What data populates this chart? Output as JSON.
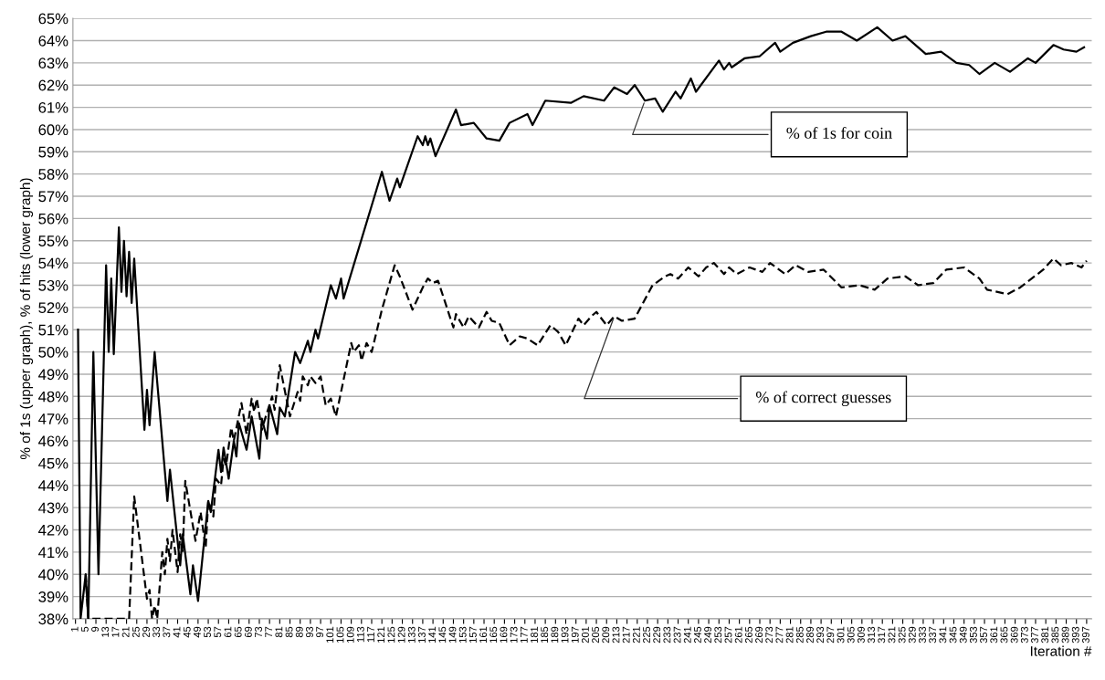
{
  "chart_data": {
    "type": "line",
    "ylabel": "% of 1s (upper graph), % of hits (lower graph)",
    "xlabel": "Iteration #",
    "xlim": [
      0,
      399
    ],
    "xticks": [
      1,
      5,
      9,
      13,
      17,
      21,
      25,
      29,
      33,
      37,
      41,
      45,
      49,
      53,
      57,
      61,
      65,
      69,
      73,
      77,
      81,
      85,
      89,
      93,
      97,
      101,
      105,
      109,
      113,
      117,
      121,
      125,
      129,
      133,
      137,
      141,
      145,
      149,
      153,
      157,
      161,
      165,
      169,
      173,
      177,
      181,
      185,
      189,
      193,
      197,
      201,
      205,
      209,
      213,
      217,
      221,
      225,
      229,
      233,
      237,
      241,
      245,
      249,
      253,
      257,
      261,
      265,
      269,
      273,
      277,
      281,
      285,
      289,
      293,
      297,
      301,
      305,
      309,
      313,
      317,
      321,
      325,
      329,
      333,
      337,
      341,
      345,
      349,
      353,
      357,
      361,
      365,
      369,
      373,
      377,
      381,
      385,
      389,
      393,
      397
    ],
    "ylim": [
      38,
      65
    ],
    "yticks": [
      {
        "value": 38,
        "label": "38%"
      },
      {
        "value": 39,
        "label": "39%"
      },
      {
        "value": 40,
        "label": "40%"
      },
      {
        "value": 41,
        "label": "41%"
      },
      {
        "value": 42,
        "label": "42%"
      },
      {
        "value": 43,
        "label": "43%"
      },
      {
        "value": 44,
        "label": "44%"
      },
      {
        "value": 45,
        "label": "45%"
      },
      {
        "value": 46,
        "label": "46%"
      },
      {
        "value": 47,
        "label": "47%"
      },
      {
        "value": 48,
        "label": "48%"
      },
      {
        "value": 49,
        "label": "49%"
      },
      {
        "value": 50,
        "label": "50%"
      },
      {
        "value": 51,
        "label": "51%"
      },
      {
        "value": 52,
        "label": "52%"
      },
      {
        "value": 53,
        "label": "53%"
      },
      {
        "value": 54,
        "label": "54%"
      },
      {
        "value": 55,
        "label": "55%"
      },
      {
        "value": 56,
        "label": "56%"
      },
      {
        "value": 57,
        "label": "57%"
      },
      {
        "value": 58,
        "label": "58%"
      },
      {
        "value": 59,
        "label": "59%"
      },
      {
        "value": 60,
        "label": "60%"
      },
      {
        "value": 61,
        "label": "61%"
      },
      {
        "value": 62,
        "label": "62%"
      },
      {
        "value": 63,
        "label": "63%"
      },
      {
        "value": 64,
        "label": "64%"
      },
      {
        "value": 65,
        "label": "65%"
      }
    ],
    "grid": "y",
    "legend": false,
    "marker": "none",
    "series": [
      {
        "name": "% of 1s for coin",
        "color": "#000000",
        "line_style": "solid",
        "x": [
          2,
          3,
          5,
          6,
          8,
          10,
          13,
          14,
          15,
          16,
          18,
          19,
          20,
          21,
          22,
          23,
          24,
          28,
          29,
          30,
          32,
          37,
          38,
          42,
          43,
          46,
          47,
          49,
          53,
          54,
          57,
          58,
          59,
          61,
          63,
          64,
          65,
          68,
          70,
          73,
          74,
          76,
          77,
          80,
          81,
          83,
          87,
          89,
          92,
          93,
          95,
          96,
          101,
          103,
          105,
          106,
          121,
          124,
          127,
          128,
          135,
          137,
          138,
          139,
          140,
          142,
          150,
          152,
          157,
          162,
          167,
          171,
          178,
          180,
          185,
          195,
          200,
          208,
          212,
          217,
          220,
          224,
          228,
          231,
          236,
          238,
          242,
          244,
          253,
          255,
          257,
          258,
          263,
          269,
          275,
          277,
          282,
          289,
          295,
          301,
          307,
          315,
          321,
          326,
          334,
          340,
          346,
          351,
          355,
          361,
          367,
          374,
          377,
          384,
          388,
          393,
          396
        ],
        "values": [
          51,
          38,
          40,
          38,
          50,
          40,
          53.9,
          50,
          53.3,
          49.9,
          55.6,
          52.7,
          55,
          52.5,
          54.5,
          52.2,
          54.2,
          46.5,
          48.3,
          46.7,
          50,
          43.3,
          44.7,
          40.4,
          41.8,
          39.1,
          40.4,
          38.8,
          43.3,
          42.8,
          45.6,
          44.6,
          45.7,
          44.3,
          46,
          45.3,
          46.8,
          45.6,
          47.1,
          45.2,
          47,
          46.1,
          47.6,
          46.3,
          47.5,
          47.1,
          50,
          49.5,
          50.5,
          50,
          51,
          50.6,
          53,
          52.4,
          53.3,
          52.4,
          58.1,
          56.8,
          57.8,
          57.4,
          59.7,
          59.3,
          59.7,
          59.3,
          59.6,
          58.8,
          60.9,
          60.2,
          60.3,
          59.6,
          59.5,
          60.3,
          60.7,
          60.2,
          61.3,
          61.2,
          61.5,
          61.3,
          61.9,
          61.6,
          62,
          61.3,
          61.4,
          60.8,
          61.7,
          61.4,
          62.3,
          61.7,
          63.1,
          62.7,
          63,
          62.8,
          63.2,
          63.3,
          63.9,
          63.5,
          63.9,
          64.2,
          64.4,
          64.4,
          64,
          64.6,
          64,
          64.2,
          63.4,
          63.5,
          63,
          62.9,
          62.5,
          63,
          62.6,
          63.2,
          63,
          63.8,
          63.6,
          63.5,
          63.7
        ]
      },
      {
        "name": "% of correct guesses",
        "color": "#000000",
        "line_style": "dashed",
        "x": [
          5,
          6,
          22,
          24,
          29,
          30,
          31,
          32,
          33,
          35,
          36,
          37,
          38,
          39,
          41,
          42,
          43,
          44,
          48,
          50,
          52,
          53,
          55,
          56,
          58,
          59,
          60,
          62,
          63,
          66,
          68,
          70,
          71,
          72,
          74,
          75,
          78,
          79,
          81,
          85,
          88,
          89,
          90,
          92,
          93,
          95,
          97,
          99,
          101,
          103,
          109,
          110,
          112,
          113,
          115,
          117,
          121,
          126,
          128,
          133,
          137,
          139,
          141,
          143,
          149,
          150,
          153,
          155,
          159,
          162,
          164,
          167,
          171,
          175,
          178,
          182,
          187,
          190,
          193,
          198,
          200,
          203,
          205,
          209,
          212,
          215,
          220,
          227,
          232,
          234,
          237,
          241,
          245,
          248,
          251,
          255,
          257,
          260,
          265,
          270,
          273,
          279,
          283,
          288,
          294,
          301,
          308,
          314,
          319,
          326,
          331,
          337,
          342,
          349,
          355,
          358,
          366,
          371,
          380,
          384,
          387,
          391,
          395,
          397
        ],
        "values": [
          40,
          38,
          38,
          43.5,
          38.9,
          39.3,
          38,
          38.6,
          38,
          41,
          40,
          41.6,
          40.6,
          42,
          40.1,
          41.8,
          41,
          44.2,
          41.5,
          42.8,
          41.2,
          43.3,
          42.6,
          44.3,
          44,
          45.2,
          44.9,
          46.6,
          46,
          47.7,
          46.3,
          47.9,
          47.3,
          47.9,
          46.5,
          46.9,
          48,
          47.4,
          49.4,
          47.1,
          48.2,
          47.8,
          48.9,
          48.5,
          48.9,
          48.6,
          48.9,
          47.6,
          47.9,
          47.1,
          50.4,
          50,
          50.3,
          49.6,
          50.4,
          50,
          51.9,
          53.9,
          53.4,
          51.9,
          52.9,
          53.3,
          53.1,
          53.2,
          51.1,
          51.7,
          51.1,
          51.6,
          51.1,
          51.8,
          51.4,
          51.3,
          50.3,
          50.7,
          50.6,
          50.3,
          51.2,
          50.9,
          50.3,
          51.5,
          51.2,
          51.6,
          51.8,
          51.2,
          51.6,
          51.4,
          51.5,
          53,
          53.4,
          53.5,
          53.3,
          53.8,
          53.4,
          53.8,
          54,
          53.5,
          53.8,
          53.5,
          53.8,
          53.6,
          54,
          53.5,
          53.9,
          53.6,
          53.7,
          52.9,
          53,
          52.8,
          53.3,
          53.4,
          53,
          53.1,
          53.7,
          53.8,
          53.3,
          52.8,
          52.6,
          52.9,
          53.7,
          54.2,
          53.9,
          54,
          53.8,
          54.1
        ]
      }
    ]
  }
}
